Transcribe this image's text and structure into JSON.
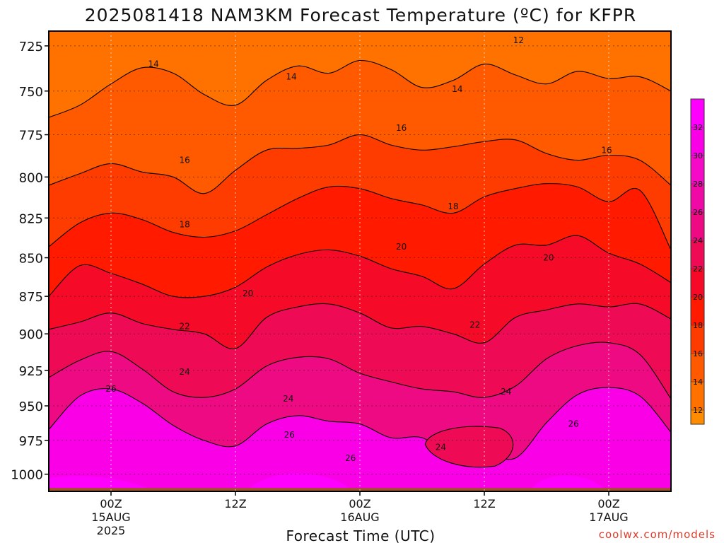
{
  "chart_data": {
    "type": "heatmap",
    "title": "2025081418 NAM3KM Forecast Temperature (ºC) for KFPR",
    "xlabel": "Forecast Time (UTC)",
    "ylabel": "",
    "y_scale": "log-pressure (inverted)",
    "ylim_hpa": [
      1013,
      717
    ],
    "y_ticks": [
      "725",
      "750",
      "775",
      "800",
      "825",
      "850",
      "875",
      "900",
      "925",
      "950",
      "975",
      "1000"
    ],
    "y_tick_values": [
      725,
      750,
      775,
      800,
      825,
      850,
      875,
      900,
      925,
      950,
      975,
      1000
    ],
    "x_ticks": [
      {
        "line1": "00Z",
        "line2": "15AUG",
        "line3": "2025",
        "hours": 6
      },
      {
        "line1": "12Z",
        "line2": "",
        "line3": "",
        "hours": 18
      },
      {
        "line1": "00Z",
        "line2": "16AUG",
        "line3": "",
        "hours": 30
      },
      {
        "line1": "12Z",
        "line2": "",
        "line3": "",
        "hours": 42
      },
      {
        "line1": "00Z",
        "line2": "17AUG",
        "line3": "",
        "hours": 54
      }
    ],
    "xlim_hours": [
      0,
      60
    ],
    "grid": true,
    "colorbar": {
      "ticks": [
        "12",
        "14",
        "16",
        "18",
        "20",
        "22",
        "24",
        "26",
        "28",
        "30",
        "32"
      ],
      "colors": [
        "#ff8c00",
        "#ff7200",
        "#ff5a00",
        "#ff3c00",
        "#ff1a00",
        "#f50a28",
        "#ee0a55",
        "#ee0a82",
        "#f00aa5",
        "#f50ac8",
        "#fa00e6",
        "#ff00ff"
      ],
      "range": [
        11,
        34
      ]
    },
    "isotherms": [
      {
        "value": 12,
        "pressures": [
          714,
          715,
          714,
          716,
          714,
          715,
          716,
          715,
          714,
          716,
          715,
          714,
          716,
          715,
          714,
          716,
          717,
          716,
          715,
          716,
          714
        ]
      },
      {
        "value": 14,
        "pressures": [
          765,
          758,
          746,
          737,
          740,
          752,
          758,
          744,
          736,
          740,
          733,
          738,
          748,
          744,
          735,
          741,
          746,
          739,
          743,
          742,
          750
        ]
      },
      {
        "value": 16,
        "pressures": [
          805,
          798,
          792,
          797,
          800,
          810,
          796,
          784,
          783,
          781,
          775,
          781,
          784,
          782,
          779,
          778,
          786,
          790,
          787,
          790,
          805
        ]
      },
      {
        "value": 18,
        "pressures": [
          843,
          828,
          822,
          826,
          834,
          837,
          833,
          823,
          813,
          806,
          807,
          813,
          817,
          822,
          812,
          807,
          804,
          806,
          815,
          808,
          845
        ]
      },
      {
        "value": 20,
        "pressures": [
          875,
          855,
          860,
          867,
          875,
          875,
          869,
          856,
          848,
          845,
          849,
          857,
          862,
          870,
          854,
          842,
          842,
          836,
          847,
          854,
          866
        ]
      },
      {
        "value": 22,
        "pressures": [
          897,
          892,
          886,
          893,
          897,
          900,
          910,
          889,
          882,
          880,
          886,
          896,
          895,
          900,
          906,
          889,
          884,
          880,
          882,
          880,
          890
        ]
      },
      {
        "value": 24,
        "pressures": [
          930,
          918,
          912,
          924,
          940,
          944,
          938,
          922,
          916,
          917,
          927,
          933,
          938,
          940,
          944,
          936,
          917,
          908,
          906,
          914,
          945
        ]
      },
      {
        "value": 26,
        "pressures": [
          967,
          943,
          938,
          948,
          964,
          975,
          979,
          963,
          957,
          961,
          963,
          973,
          973,
          987,
          984,
          988,
          962,
          942,
          937,
          943,
          969
        ]
      }
    ],
    "contour_labels": [
      {
        "text": "12",
        "hours": 45.3,
        "hpa": 722
      },
      {
        "text": "14",
        "hours": 10.1,
        "hpa": 735
      },
      {
        "text": "14",
        "hours": 23.4,
        "hpa": 742
      },
      {
        "text": "14",
        "hours": 39.4,
        "hpa": 749
      },
      {
        "text": "16",
        "hours": 13.1,
        "hpa": 790
      },
      {
        "text": "16",
        "hours": 34.0,
        "hpa": 771
      },
      {
        "text": "16",
        "hours": 53.8,
        "hpa": 784
      },
      {
        "text": "18",
        "hours": 13.1,
        "hpa": 829
      },
      {
        "text": "18",
        "hours": 39.0,
        "hpa": 818
      },
      {
        "text": "20",
        "hours": 19.2,
        "hpa": 873
      },
      {
        "text": "20",
        "hours": 34.0,
        "hpa": 843
      },
      {
        "text": "20",
        "hours": 48.2,
        "hpa": 850
      },
      {
        "text": "22",
        "hours": 13.1,
        "hpa": 895
      },
      {
        "text": "22",
        "hours": 41.1,
        "hpa": 894
      },
      {
        "text": "24",
        "hours": 13.1,
        "hpa": 926
      },
      {
        "text": "24",
        "hours": 23.1,
        "hpa": 945
      },
      {
        "text": "24",
        "hours": 44.1,
        "hpa": 940
      },
      {
        "text": "24",
        "hours": 37.8,
        "hpa": 980
      },
      {
        "text": "26",
        "hours": 6.0,
        "hpa": 938
      },
      {
        "text": "26",
        "hours": 23.2,
        "hpa": 971
      },
      {
        "text": "26",
        "hours": 29.1,
        "hpa": 988
      },
      {
        "text": "26",
        "hours": 50.6,
        "hpa": 963
      }
    ],
    "ground_color": "#a0522d",
    "surface_pressure_hpa": 1012
  },
  "credit": "coolwx.com/models"
}
